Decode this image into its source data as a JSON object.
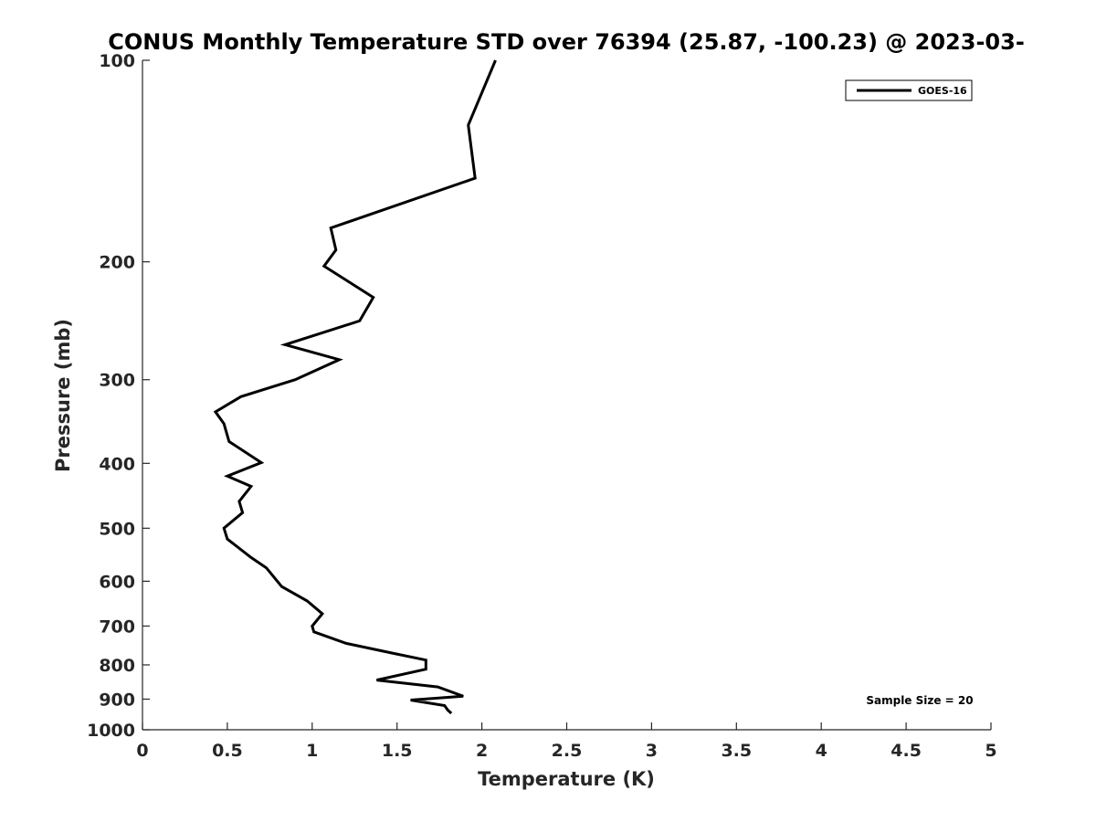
{
  "chart_data": {
    "type": "line",
    "title": "CONUS Monthly Temperature STD over 76394 (25.87, -100.23) @ 2023-03-",
    "xlabel": "Temperature (K)",
    "ylabel": "Pressure (mb)",
    "xlim": [
      0,
      5
    ],
    "ylim": [
      100,
      1000
    ],
    "y_scale": "log",
    "y_reversed": true,
    "x_ticks": [
      "0",
      "0.5",
      "1",
      "1.5",
      "2",
      "2.5",
      "3",
      "3.5",
      "4",
      "4.5",
      "5"
    ],
    "y_ticks": [
      "100",
      "200",
      "300",
      "400",
      "500",
      "600",
      "700",
      "800",
      "900",
      "1000"
    ],
    "grid": false,
    "legend_position": "top-right",
    "annotation": "Sample Size = 20",
    "series": [
      {
        "name": "GOES-16",
        "color": "#000000",
        "points": [
          [
            2.08,
            100
          ],
          [
            1.92,
            125
          ],
          [
            1.96,
            150
          ],
          [
            1.11,
            178
          ],
          [
            1.14,
            192
          ],
          [
            1.07,
            203
          ],
          [
            1.36,
            226
          ],
          [
            1.28,
            245
          ],
          [
            0.84,
            266
          ],
          [
            1.16,
            280
          ],
          [
            0.9,
            300
          ],
          [
            0.58,
            318
          ],
          [
            0.43,
            335
          ],
          [
            0.48,
            349
          ],
          [
            0.51,
            371
          ],
          [
            0.7,
            399
          ],
          [
            0.5,
            418
          ],
          [
            0.64,
            433
          ],
          [
            0.57,
            456
          ],
          [
            0.59,
            474
          ],
          [
            0.48,
            500
          ],
          [
            0.5,
            519
          ],
          [
            0.64,
            553
          ],
          [
            0.73,
            573
          ],
          [
            0.82,
            611
          ],
          [
            0.97,
            642
          ],
          [
            1.06,
            671
          ],
          [
            1.0,
            700
          ],
          [
            1.01,
            714
          ],
          [
            1.2,
            743
          ],
          [
            1.47,
            768
          ],
          [
            1.67,
            787
          ],
          [
            1.67,
            812
          ],
          [
            1.38,
            843
          ],
          [
            1.74,
            863
          ],
          [
            1.89,
            891
          ],
          [
            1.58,
            903
          ],
          [
            1.78,
            920
          ],
          [
            1.8,
            935
          ],
          [
            1.82,
            945
          ]
        ]
      }
    ]
  }
}
